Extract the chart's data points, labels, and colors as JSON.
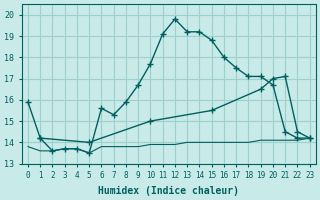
{
  "xlabel": "Humidex (Indice chaleur)",
  "ylabel": "",
  "background_color": "#c8eae8",
  "grid_color": "#a0d0ce",
  "line_color": "#006060",
  "xlim": [
    -0.5,
    23.5
  ],
  "ylim": [
    13,
    20.5
  ],
  "yticks": [
    13,
    14,
    15,
    16,
    17,
    18,
    19,
    20
  ],
  "xticks": [
    0,
    1,
    2,
    3,
    4,
    5,
    6,
    7,
    8,
    9,
    10,
    11,
    12,
    13,
    14,
    15,
    16,
    17,
    18,
    19,
    20,
    21,
    22,
    23
  ],
  "curve1_x": [
    0,
    1,
    2,
    3,
    4,
    5,
    6,
    7,
    8,
    9,
    10,
    11,
    12,
    13,
    14,
    15,
    16,
    17,
    18,
    19,
    20,
    21,
    22,
    23
  ],
  "curve1_y": [
    15.9,
    14.2,
    13.6,
    13.7,
    13.7,
    13.5,
    15.6,
    15.3,
    15.9,
    16.7,
    17.7,
    19.1,
    19.8,
    19.2,
    19.2,
    18.8,
    18.0,
    17.5,
    17.1,
    17.1,
    16.7,
    14.5,
    14.2,
    14.2
  ],
  "curve2_x": [
    0,
    1,
    2,
    3,
    4,
    5,
    6,
    7,
    8,
    9,
    10,
    11,
    12,
    13,
    14,
    15,
    16,
    17,
    18,
    19,
    20,
    21,
    22,
    23
  ],
  "curve2_y": [
    13.8,
    13.6,
    13.6,
    13.7,
    13.7,
    13.5,
    13.8,
    13.8,
    13.8,
    13.8,
    13.9,
    13.9,
    13.9,
    14.0,
    14.0,
    14.0,
    14.0,
    14.0,
    14.0,
    14.1,
    14.1,
    14.1,
    14.1,
    14.2
  ],
  "curve3_x": [
    1,
    5,
    10,
    15,
    19,
    20,
    21,
    22,
    23
  ],
  "curve3_y": [
    14.2,
    14.0,
    15.0,
    15.5,
    16.5,
    17.0,
    17.1,
    14.5,
    14.2
  ]
}
